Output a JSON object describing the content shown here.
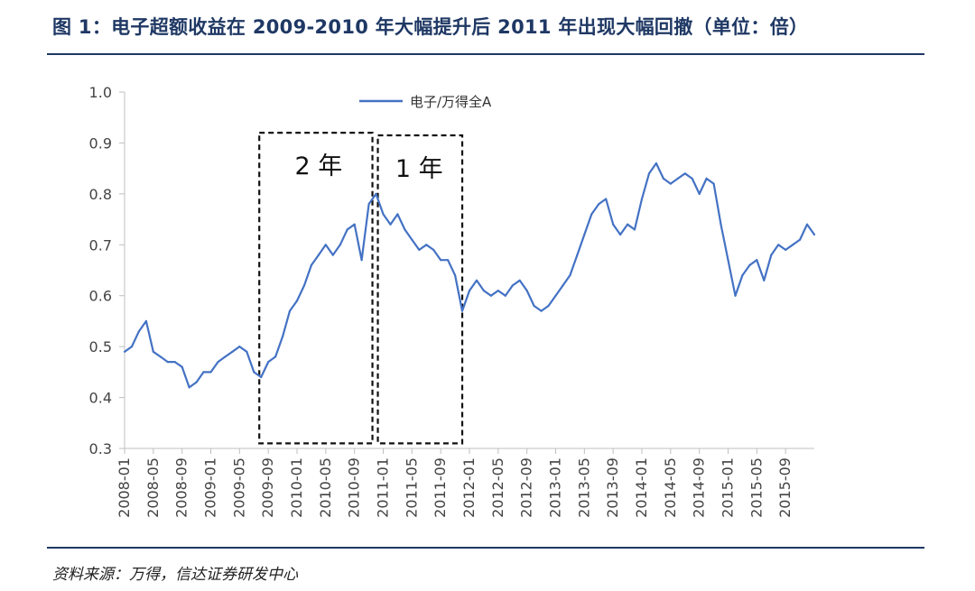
{
  "figure": {
    "title": "图 1：电子超额收益在 2009-2010 年大幅提升后 2011 年出现大幅回撤（单位：倍）",
    "source": "资料来源：万得，信达证券研发中心"
  },
  "colors": {
    "line": "#4472c4",
    "rule": "#1f3864",
    "axis": "#bfbfbf"
  },
  "chart_data": {
    "type": "line",
    "legend": {
      "entries": [
        "电子/万得全A"
      ],
      "placement": "top-center"
    },
    "ylim": [
      0.3,
      1.0
    ],
    "yticks": [
      "0.3",
      "0.4",
      "0.5",
      "0.6",
      "0.7",
      "0.8",
      "0.9",
      "1.0"
    ],
    "grid": false,
    "xticks": [
      "2008-01",
      "2008-05",
      "2008-09",
      "2009-01",
      "2009-05",
      "2009-09",
      "2010-01",
      "2010-05",
      "2010-09",
      "2011-01",
      "2011-05",
      "2011-09",
      "2012-01",
      "2012-05",
      "2012-09",
      "2013-01",
      "2013-05",
      "2013-09",
      "2014-01",
      "2014-05",
      "2014-09",
      "2015-01",
      "2015-05",
      "2015-09"
    ],
    "series": [
      {
        "name": "电子/万得全A",
        "points": [
          [
            "2008-01",
            0.49
          ],
          [
            "2008-02",
            0.5
          ],
          [
            "2008-03",
            0.53
          ],
          [
            "2008-04",
            0.55
          ],
          [
            "2008-05",
            0.49
          ],
          [
            "2008-06",
            0.48
          ],
          [
            "2008-07",
            0.47
          ],
          [
            "2008-08",
            0.47
          ],
          [
            "2008-09",
            0.46
          ],
          [
            "2008-10",
            0.42
          ],
          [
            "2008-11",
            0.43
          ],
          [
            "2008-12",
            0.45
          ],
          [
            "2009-01",
            0.45
          ],
          [
            "2009-02",
            0.47
          ],
          [
            "2009-03",
            0.48
          ],
          [
            "2009-04",
            0.49
          ],
          [
            "2009-05",
            0.5
          ],
          [
            "2009-06",
            0.49
          ],
          [
            "2009-07",
            0.45
          ],
          [
            "2009-08",
            0.44
          ],
          [
            "2009-09",
            0.47
          ],
          [
            "2009-10",
            0.48
          ],
          [
            "2009-11",
            0.52
          ],
          [
            "2009-12",
            0.57
          ],
          [
            "2010-01",
            0.59
          ],
          [
            "2010-02",
            0.62
          ],
          [
            "2010-03",
            0.66
          ],
          [
            "2010-04",
            0.68
          ],
          [
            "2010-05",
            0.7
          ],
          [
            "2010-06",
            0.68
          ],
          [
            "2010-07",
            0.7
          ],
          [
            "2010-08",
            0.73
          ],
          [
            "2010-09",
            0.74
          ],
          [
            "2010-10",
            0.67
          ],
          [
            "2010-11",
            0.78
          ],
          [
            "2010-12",
            0.8
          ],
          [
            "2011-01",
            0.76
          ],
          [
            "2011-02",
            0.74
          ],
          [
            "2011-03",
            0.76
          ],
          [
            "2011-04",
            0.73
          ],
          [
            "2011-05",
            0.71
          ],
          [
            "2011-06",
            0.69
          ],
          [
            "2011-07",
            0.7
          ],
          [
            "2011-08",
            0.69
          ],
          [
            "2011-09",
            0.67
          ],
          [
            "2011-10",
            0.67
          ],
          [
            "2011-11",
            0.64
          ],
          [
            "2011-12",
            0.57
          ],
          [
            "2012-01",
            0.61
          ],
          [
            "2012-02",
            0.63
          ],
          [
            "2012-03",
            0.61
          ],
          [
            "2012-04",
            0.6
          ],
          [
            "2012-05",
            0.61
          ],
          [
            "2012-06",
            0.6
          ],
          [
            "2012-07",
            0.62
          ],
          [
            "2012-08",
            0.63
          ],
          [
            "2012-09",
            0.61
          ],
          [
            "2012-10",
            0.58
          ],
          [
            "2012-11",
            0.57
          ],
          [
            "2012-12",
            0.58
          ],
          [
            "2013-01",
            0.6
          ],
          [
            "2013-02",
            0.62
          ],
          [
            "2013-03",
            0.64
          ],
          [
            "2013-04",
            0.68
          ],
          [
            "2013-05",
            0.72
          ],
          [
            "2013-06",
            0.76
          ],
          [
            "2013-07",
            0.78
          ],
          [
            "2013-08",
            0.79
          ],
          [
            "2013-09",
            0.74
          ],
          [
            "2013-10",
            0.72
          ],
          [
            "2013-11",
            0.74
          ],
          [
            "2013-12",
            0.73
          ],
          [
            "2014-01",
            0.79
          ],
          [
            "2014-02",
            0.84
          ],
          [
            "2014-03",
            0.86
          ],
          [
            "2014-04",
            0.83
          ],
          [
            "2014-05",
            0.82
          ],
          [
            "2014-06",
            0.83
          ],
          [
            "2014-07",
            0.84
          ],
          [
            "2014-08",
            0.83
          ],
          [
            "2014-09",
            0.8
          ],
          [
            "2014-10",
            0.83
          ],
          [
            "2014-11",
            0.82
          ],
          [
            "2014-12",
            0.74
          ],
          [
            "2015-01",
            0.67
          ],
          [
            "2015-02",
            0.6
          ],
          [
            "2015-03",
            0.64
          ],
          [
            "2015-04",
            0.66
          ],
          [
            "2015-05",
            0.67
          ],
          [
            "2015-06",
            0.63
          ],
          [
            "2015-07",
            0.68
          ],
          [
            "2015-08",
            0.7
          ],
          [
            "2015-09",
            0.69
          ],
          [
            "2015-10",
            0.7
          ],
          [
            "2015-11",
            0.71
          ],
          [
            "2015-12",
            0.74
          ],
          [
            "2016-01",
            0.72
          ]
        ]
      }
    ],
    "annotations": [
      {
        "label": "2 年",
        "from": "2009-08",
        "to": "2010-12",
        "ylo": 0.31,
        "yhi": 0.92
      },
      {
        "label": "1 年",
        "from": "2010-12",
        "to": "2011-12",
        "ylo": 0.31,
        "yhi": 0.915
      }
    ]
  }
}
